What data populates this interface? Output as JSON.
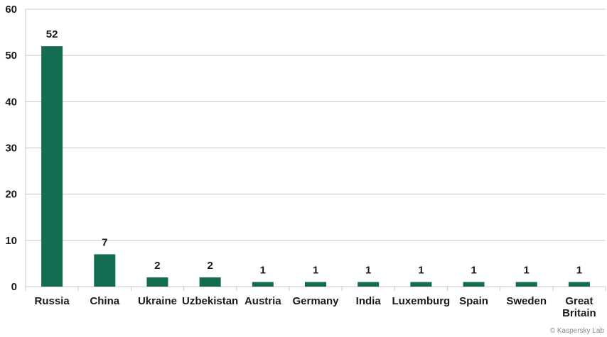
{
  "chart_data": {
    "type": "bar",
    "categories": [
      "Russia",
      "China",
      "Ukraine",
      "Uzbekistan",
      "Austria",
      "Germany",
      "India",
      "Luxemburg",
      "Spain",
      "Sweden",
      "Great Britain"
    ],
    "category_lines": [
      [
        "Russia"
      ],
      [
        "China"
      ],
      [
        "Ukraine"
      ],
      [
        "Uzbekistan"
      ],
      [
        "Austria"
      ],
      [
        "Germany"
      ],
      [
        "India"
      ],
      [
        "Luxemburg"
      ],
      [
        "Spain"
      ],
      [
        "Sweden"
      ],
      [
        "Great",
        "Britain"
      ]
    ],
    "values": [
      52,
      7,
      2,
      2,
      1,
      1,
      1,
      1,
      1,
      1,
      1
    ],
    "ylim": [
      0,
      60
    ],
    "yticks": [
      0,
      10,
      20,
      30,
      40,
      50,
      60
    ],
    "grid": true,
    "bar_color": "#136b52",
    "grid_color": "#c8c8c8",
    "title": "",
    "xlabel": "",
    "ylabel": ""
  },
  "footer": {
    "copyright": "© Kaspersky Lab"
  }
}
